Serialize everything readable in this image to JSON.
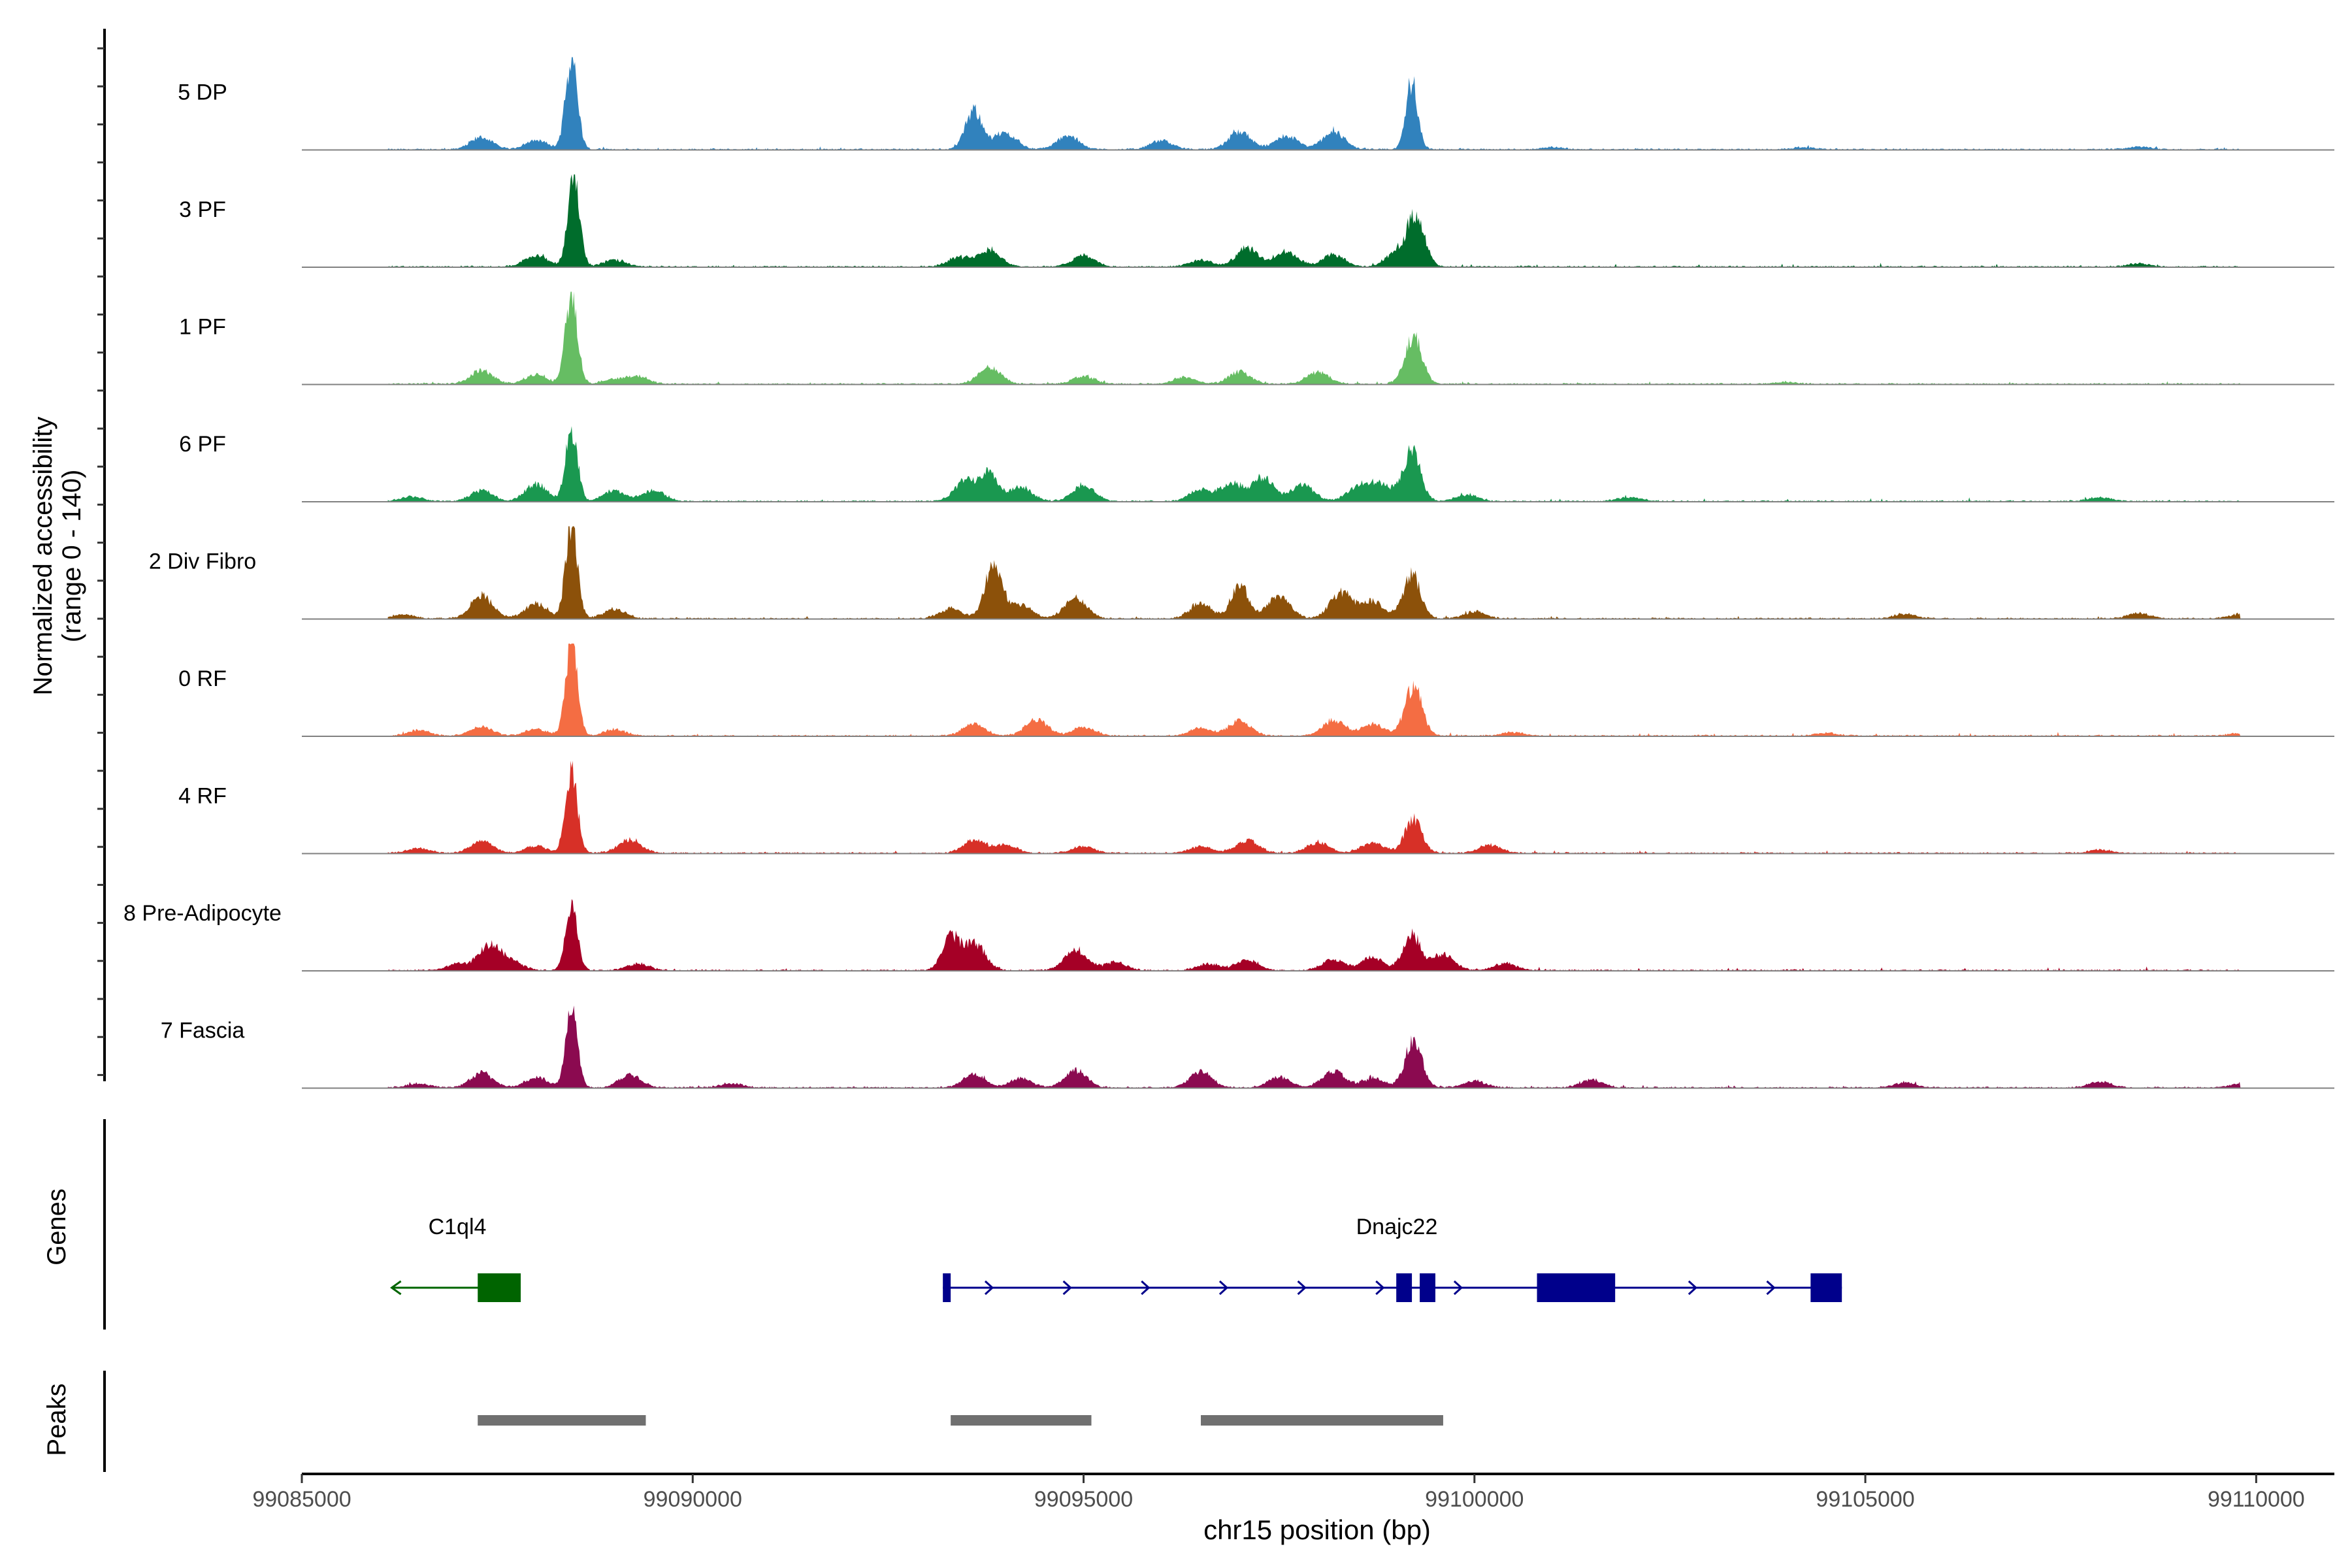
{
  "chart_data": {
    "type": "area",
    "title": "",
    "xlabel": "chr15 position (bp)",
    "ylabel": "Normalized accessibility\n(range 0 - 140)",
    "y_range": [
      0,
      140
    ],
    "xlim": [
      99085000,
      99111000
    ],
    "x_ticks": [
      99085000,
      99090000,
      99095000,
      99100000,
      99105000,
      99110000
    ],
    "x_tick_labels": [
      "99085000",
      "99090000",
      "99095000",
      "99100000",
      "99105000",
      "99110000"
    ],
    "genes_label": "Genes",
    "peaks_label": "Peaks",
    "series": [
      {
        "name": "5 DP",
        "color": "#3182BD",
        "values": [
          [
            99087300,
            18
          ],
          [
            99088000,
            14
          ],
          [
            99088450,
            140
          ],
          [
            99093600,
            58
          ],
          [
            99094000,
            25
          ],
          [
            99094800,
            20
          ],
          [
            99096000,
            13
          ],
          [
            99097000,
            26
          ],
          [
            99097600,
            20
          ],
          [
            99098200,
            26
          ],
          [
            99099200,
            102
          ],
          [
            99101000,
            3
          ],
          [
            99104200,
            3
          ],
          [
            99108500,
            4
          ]
        ]
      },
      {
        "name": "3 PF",
        "color": "#006D2C",
        "values": [
          [
            99088000,
            18
          ],
          [
            99088480,
            140
          ],
          [
            99089000,
            10
          ],
          [
            99093400,
            14
          ],
          [
            99093800,
            26
          ],
          [
            99095000,
            17
          ],
          [
            99096500,
            10
          ],
          [
            99097100,
            28
          ],
          [
            99097600,
            22
          ],
          [
            99098200,
            18
          ],
          [
            99099000,
            20
          ],
          [
            99099250,
            77
          ],
          [
            99108500,
            5
          ]
        ]
      },
      {
        "name": "1 PF",
        "color": "#66BD63",
        "values": [
          [
            99087300,
            20
          ],
          [
            99088000,
            14
          ],
          [
            99088450,
            140
          ],
          [
            99089000,
            7
          ],
          [
            99089300,
            11
          ],
          [
            99093800,
            26
          ],
          [
            99095000,
            12
          ],
          [
            99096300,
            10
          ],
          [
            99097000,
            18
          ],
          [
            99098000,
            18
          ],
          [
            99099220,
            70
          ],
          [
            99104000,
            3
          ]
        ]
      },
      {
        "name": "6 PF",
        "color": "#1A9850",
        "values": [
          [
            99086400,
            7
          ],
          [
            99087300,
            16
          ],
          [
            99088000,
            25
          ],
          [
            99088450,
            110
          ],
          [
            99089000,
            16
          ],
          [
            99089500,
            17
          ],
          [
            99093500,
            32
          ],
          [
            99093800,
            44
          ],
          [
            99094200,
            22
          ],
          [
            99095000,
            25
          ],
          [
            99096500,
            18
          ],
          [
            99096900,
            27
          ],
          [
            99097300,
            35
          ],
          [
            99097800,
            25
          ],
          [
            99098500,
            20
          ],
          [
            99098800,
            26
          ],
          [
            99099200,
            74
          ],
          [
            99099900,
            10
          ],
          [
            99102000,
            6
          ],
          [
            99108000,
            6
          ]
        ]
      },
      {
        "name": "2 Div Fibro",
        "color": "#8C510A",
        "values": [
          [
            99086300,
            6
          ],
          [
            99087300,
            35
          ],
          [
            99088000,
            22
          ],
          [
            99088450,
            140
          ],
          [
            99089000,
            14
          ],
          [
            99093300,
            15
          ],
          [
            99093850,
            80
          ],
          [
            99094200,
            20
          ],
          [
            99094900,
            32
          ],
          [
            99096500,
            22
          ],
          [
            99097000,
            50
          ],
          [
            99097500,
            35
          ],
          [
            99098300,
            40
          ],
          [
            99098700,
            25
          ],
          [
            99099200,
            67
          ],
          [
            99100000,
            10
          ],
          [
            99105500,
            7
          ],
          [
            99108500,
            8
          ],
          [
            99109800,
            7
          ]
        ]
      },
      {
        "name": "0 RF",
        "color": "#F46D43",
        "values": [
          [
            99086500,
            8
          ],
          [
            99087300,
            14
          ],
          [
            99088000,
            10
          ],
          [
            99088450,
            140
          ],
          [
            99089000,
            9
          ],
          [
            99093600,
            18
          ],
          [
            99094400,
            24
          ],
          [
            99095000,
            14
          ],
          [
            99096500,
            12
          ],
          [
            99097000,
            22
          ],
          [
            99098200,
            24
          ],
          [
            99098700,
            18
          ],
          [
            99099220,
            73
          ],
          [
            99100500,
            5
          ],
          [
            99104500,
            4
          ],
          [
            99109800,
            4
          ]
        ]
      },
      {
        "name": "4 RF",
        "color": "#D73027",
        "values": [
          [
            99086500,
            7
          ],
          [
            99087300,
            19
          ],
          [
            99088000,
            11
          ],
          [
            99088450,
            125
          ],
          [
            99089200,
            20
          ],
          [
            99093600,
            20
          ],
          [
            99094000,
            12
          ],
          [
            99095000,
            10
          ],
          [
            99096500,
            10
          ],
          [
            99097100,
            20
          ],
          [
            99098000,
            16
          ],
          [
            99098700,
            16
          ],
          [
            99099220,
            50
          ],
          [
            99100200,
            12
          ],
          [
            99108000,
            5
          ]
        ]
      },
      {
        "name": "8 Pre-Adipocyte",
        "color": "#A50026",
        "values": [
          [
            99087000,
            10
          ],
          [
            99087400,
            38
          ],
          [
            99087700,
            12
          ],
          [
            99088450,
            100
          ],
          [
            99089300,
            10
          ],
          [
            99093300,
            48
          ],
          [
            99093600,
            40
          ],
          [
            99094900,
            32
          ],
          [
            99095400,
            12
          ],
          [
            99096600,
            10
          ],
          [
            99097100,
            16
          ],
          [
            99098200,
            16
          ],
          [
            99098700,
            20
          ],
          [
            99099200,
            55
          ],
          [
            99099600,
            24
          ],
          [
            99100400,
            10
          ]
        ]
      },
      {
        "name": "7 Fascia",
        "color": "#8B0A50",
        "values": [
          [
            99086500,
            6
          ],
          [
            99087300,
            22
          ],
          [
            99088000,
            16
          ],
          [
            99088450,
            122
          ],
          [
            99089200,
            20
          ],
          [
            99090500,
            6
          ],
          [
            99093600,
            20
          ],
          [
            99094200,
            14
          ],
          [
            99094900,
            26
          ],
          [
            99096500,
            24
          ],
          [
            99097500,
            16
          ],
          [
            99098200,
            26
          ],
          [
            99098700,
            14
          ],
          [
            99099220,
            69
          ],
          [
            99100000,
            10
          ],
          [
            99101500,
            12
          ],
          [
            99105500,
            8
          ],
          [
            99108000,
            9
          ],
          [
            99109800,
            6
          ]
        ]
      }
    ],
    "genes": [
      {
        "name": "C1ql4",
        "strand": "-",
        "color": "#006400",
        "start": 99086150,
        "end": 99087800,
        "exons": [
          [
            99087250,
            99087800
          ]
        ]
      },
      {
        "name": "Dnajc22",
        "strand": "+",
        "color": "#00008B",
        "start": 99093200,
        "end": 99104700,
        "exons": [
          [
            99093200,
            99093300
          ],
          [
            99099000,
            99099200
          ],
          [
            99099300,
            99099500
          ],
          [
            99100800,
            99101800
          ],
          [
            99104300,
            99104700
          ]
        ]
      }
    ],
    "peaks": [
      [
        99087250,
        99089400
      ],
      [
        99093300,
        99095100
      ],
      [
        99096500,
        99099600
      ]
    ]
  }
}
